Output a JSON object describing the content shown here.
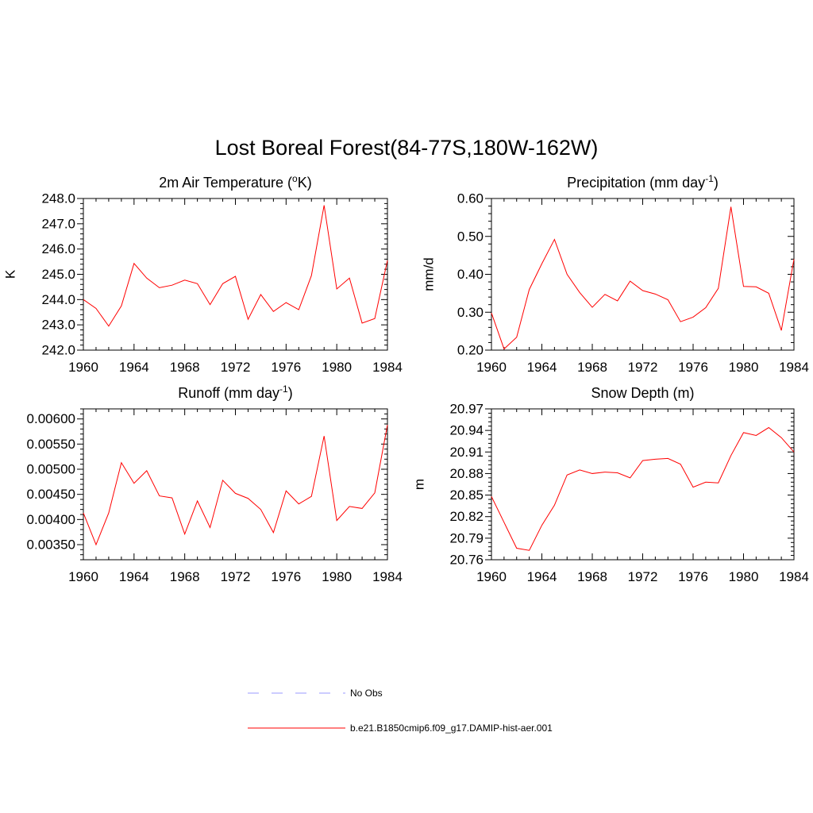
{
  "title": "Lost Boreal Forest(84-77S,180W-162W)",
  "colors": {
    "series": "#ff0000",
    "obs": "#9999ff",
    "axis": "#000000"
  },
  "legend": [
    {
      "label": "No Obs",
      "style": "dashed",
      "color": "#9999ff"
    },
    {
      "label": "b.e21.B1850cmip6.f09_g17.DAMIP-hist-aer.001",
      "style": "solid",
      "color": "#ff0000"
    }
  ],
  "chart_data": [
    {
      "type": "line",
      "title": "2m Air Temperature (°K)",
      "title_parts": {
        "pre": "2m Air Temperature (",
        "sup": "o",
        "post": "K)"
      },
      "ylabel": "K",
      "xlim": [
        1960,
        1984
      ],
      "ylim": [
        242.0,
        248.0
      ],
      "xticks": [
        1960,
        1964,
        1968,
        1972,
        1976,
        1980,
        1984
      ],
      "xtick_labels": [
        "1960",
        "1964",
        "1968",
        "1972",
        "1976",
        "1980",
        "1984"
      ],
      "yticks": [
        242.0,
        243.0,
        244.0,
        245.0,
        246.0,
        247.0,
        248.0
      ],
      "ytick_labels": [
        "242.0",
        "243.0",
        "244.0",
        "245.0",
        "246.0",
        "247.0",
        "248.0"
      ],
      "x": [
        1960,
        1961,
        1962,
        1963,
        1964,
        1965,
        1966,
        1967,
        1968,
        1969,
        1970,
        1971,
        1972,
        1973,
        1974,
        1975,
        1976,
        1977,
        1978,
        1979,
        1980,
        1981,
        1982,
        1983,
        1984
      ],
      "series": [
        {
          "name": "b.e21.B1850cmip6.f09_g17.DAMIP-hist-aer.001",
          "values": [
            244.0,
            243.65,
            242.95,
            243.75,
            245.43,
            244.85,
            244.47,
            244.57,
            244.77,
            244.63,
            243.8,
            244.63,
            244.92,
            243.22,
            244.2,
            243.53,
            243.88,
            243.6,
            244.95,
            247.73,
            244.42,
            244.85,
            243.07,
            243.25,
            245.55
          ]
        }
      ]
    },
    {
      "type": "line",
      "title": "Precipitation (mm day-1)",
      "title_parts": {
        "pre": "Precipitation (mm day",
        "sup": "-1",
        "post": ")"
      },
      "ylabel": "mm/d",
      "xlim": [
        1960,
        1984
      ],
      "ylim": [
        0.2,
        0.6
      ],
      "xticks": [
        1960,
        1964,
        1968,
        1972,
        1976,
        1980,
        1984
      ],
      "xtick_labels": [
        "1960",
        "1964",
        "1968",
        "1972",
        "1976",
        "1980",
        "1984"
      ],
      "yticks": [
        0.2,
        0.3,
        0.4,
        0.5,
        0.6
      ],
      "ytick_labels": [
        "0.20",
        "0.30",
        "0.40",
        "0.50",
        "0.60"
      ],
      "x": [
        1960,
        1961,
        1962,
        1963,
        1964,
        1965,
        1966,
        1967,
        1968,
        1969,
        1970,
        1971,
        1972,
        1973,
        1974,
        1975,
        1976,
        1977,
        1978,
        1979,
        1980,
        1981,
        1982,
        1983,
        1984
      ],
      "series": [
        {
          "name": "b.e21.B1850cmip6.f09_g17.DAMIP-hist-aer.001",
          "values": [
            0.298,
            0.203,
            0.234,
            0.36,
            0.428,
            0.492,
            0.4,
            0.352,
            0.313,
            0.347,
            0.33,
            0.382,
            0.357,
            0.348,
            0.333,
            0.275,
            0.287,
            0.312,
            0.363,
            0.578,
            0.368,
            0.367,
            0.35,
            0.252,
            0.44
          ]
        }
      ]
    },
    {
      "type": "line",
      "title": "Runoff (mm day-1)",
      "title_parts": {
        "pre": "Runoff (mm day",
        "sup": "-1",
        "post": ")"
      },
      "ylabel": "",
      "xlim": [
        1960,
        1984
      ],
      "ylim": [
        0.0032,
        0.0062
      ],
      "xticks": [
        1960,
        1964,
        1968,
        1972,
        1976,
        1980,
        1984
      ],
      "xtick_labels": [
        "1960",
        "1964",
        "1968",
        "1972",
        "1976",
        "1980",
        "1984"
      ],
      "yticks": [
        0.0035,
        0.004,
        0.0045,
        0.005,
        0.0055,
        0.006
      ],
      "ytick_labels": [
        "0.00350",
        "0.00400",
        "0.00450",
        "0.00500",
        "0.00550",
        "0.00600"
      ],
      "x": [
        1960,
        1961,
        1962,
        1963,
        1964,
        1965,
        1966,
        1967,
        1968,
        1969,
        1970,
        1971,
        1972,
        1973,
        1974,
        1975,
        1976,
        1977,
        1978,
        1979,
        1980,
        1981,
        1982,
        1983,
        1984
      ],
      "series": [
        {
          "name": "b.e21.B1850cmip6.f09_g17.DAMIP-hist-aer.001",
          "values": [
            0.00413,
            0.0035,
            0.00413,
            0.00513,
            0.00472,
            0.00497,
            0.00447,
            0.00443,
            0.00371,
            0.00437,
            0.00384,
            0.00478,
            0.00452,
            0.00442,
            0.0042,
            0.00374,
            0.00457,
            0.00431,
            0.00446,
            0.00566,
            0.00398,
            0.00426,
            0.00422,
            0.00453,
            0.00588
          ]
        }
      ]
    },
    {
      "type": "line",
      "title": "Snow Depth (m)",
      "title_parts": {
        "pre": "Snow Depth (m)",
        "sup": "",
        "post": ""
      },
      "ylabel": "m",
      "xlim": [
        1960,
        1984
      ],
      "ylim": [
        20.76,
        20.97
      ],
      "xticks": [
        1960,
        1964,
        1968,
        1972,
        1976,
        1980,
        1984
      ],
      "xtick_labels": [
        "1960",
        "1964",
        "1968",
        "1972",
        "1976",
        "1980",
        "1984"
      ],
      "yticks": [
        20.76,
        20.79,
        20.82,
        20.85,
        20.88,
        20.91,
        20.94,
        20.97
      ],
      "ytick_labels": [
        "20.76",
        "20.79",
        "20.82",
        "20.85",
        "20.88",
        "20.91",
        "20.94",
        "20.97"
      ],
      "x": [
        1960,
        1961,
        1962,
        1963,
        1964,
        1965,
        1966,
        1967,
        1968,
        1969,
        1970,
        1971,
        1972,
        1973,
        1974,
        1975,
        1976,
        1977,
        1978,
        1979,
        1980,
        1981,
        1982,
        1983,
        1984
      ],
      "series": [
        {
          "name": "b.e21.B1850cmip6.f09_g17.DAMIP-hist-aer.001",
          "values": [
            20.848,
            20.812,
            20.776,
            20.773,
            20.808,
            20.836,
            20.878,
            20.885,
            20.88,
            20.882,
            20.881,
            20.874,
            20.898,
            20.9,
            20.901,
            20.893,
            20.861,
            20.868,
            20.867,
            20.905,
            20.937,
            20.933,
            20.944,
            20.93,
            20.91
          ]
        }
      ]
    }
  ]
}
